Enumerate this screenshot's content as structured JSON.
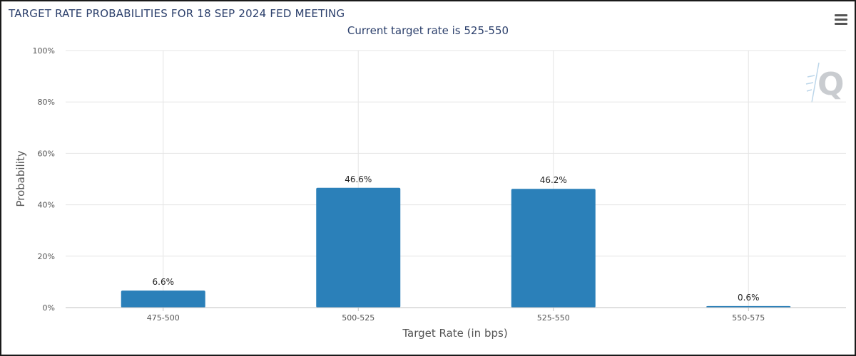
{
  "chart_data": {
    "type": "bar",
    "title": "TARGET RATE PROBABILITIES FOR 18 SEP 2024 FED MEETING",
    "subtitle": "Current target rate is 525-550",
    "xlabel": "Target Rate (in bps)",
    "ylabel": "Probability",
    "categories": [
      "475-500",
      "500-525",
      "525-550",
      "550-575"
    ],
    "values": [
      6.6,
      46.6,
      46.2,
      0.6
    ],
    "data_labels": [
      "6.6%",
      "46.6%",
      "46.2%",
      "0.6%"
    ],
    "ylim": [
      0,
      100
    ],
    "yticks": [
      0,
      20,
      40,
      60,
      80,
      100
    ],
    "ytick_labels": [
      "0%",
      "20%",
      "40%",
      "60%",
      "80%",
      "100%"
    ],
    "grid": true,
    "bar_color": "#2b80b9"
  },
  "icons": {
    "menu": "hamburger-menu-icon",
    "watermark": "q-logo-watermark"
  }
}
